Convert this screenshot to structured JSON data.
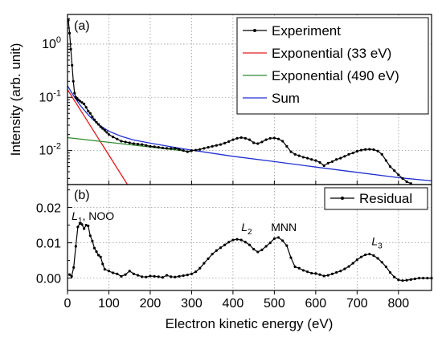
{
  "figure": {
    "xlabel": "Electron kinetic energy (eV)"
  },
  "colors": {
    "experiment": "#000000",
    "exp33": "#e41a1c",
    "exp490": "#2e8b2e",
    "sum": "#1f2fd0",
    "residual": "#000000"
  },
  "chart_data": [
    {
      "id": "a",
      "type": "line",
      "panel_label": "(a)",
      "xlabel": "Electron kinetic energy (eV)",
      "ylabel": "Intensity (arb. unit)",
      "yscale": "log",
      "xlim": [
        0,
        880
      ],
      "ylim": [
        0.0023,
        3.6
      ],
      "x_ticks": [
        0,
        100,
        200,
        300,
        400,
        500,
        600,
        700,
        800
      ],
      "y_tick_labels": [
        "10^0",
        "10^-1",
        "10^-2"
      ],
      "legend": "top-right",
      "grid": true,
      "series": [
        {
          "name": "Experiment",
          "style": "line-marker",
          "x": [
            2,
            5,
            8,
            11,
            14,
            17,
            20,
            23,
            26,
            30,
            35,
            40,
            45,
            50,
            55,
            60,
            65,
            70,
            75,
            80,
            85,
            90,
            95,
            100,
            110,
            120,
            130,
            140,
            150,
            160,
            170,
            180,
            190,
            200,
            210,
            220,
            230,
            240,
            250,
            260,
            270,
            280,
            290,
            300,
            310,
            320,
            330,
            340,
            350,
            360,
            370,
            380,
            390,
            400,
            410,
            420,
            430,
            440,
            450,
            460,
            470,
            480,
            490,
            500,
            510,
            520,
            530,
            540,
            550,
            560,
            570,
            580,
            590,
            600,
            610,
            620,
            630,
            640,
            650,
            660,
            670,
            680,
            690,
            700,
            710,
            720,
            730,
            740,
            750,
            760,
            770,
            780,
            790,
            800,
            810,
            820,
            830
          ],
          "y": [
            2.8,
            1.6,
            0.8,
            0.4,
            0.2,
            0.12,
            0.1,
            0.095,
            0.09,
            0.085,
            0.08,
            0.075,
            0.065,
            0.055,
            0.05,
            0.043,
            0.038,
            0.034,
            0.031,
            0.028,
            0.026,
            0.024,
            0.022,
            0.02,
            0.018,
            0.0165,
            0.015,
            0.0145,
            0.014,
            0.0135,
            0.0132,
            0.013,
            0.0125,
            0.012,
            0.0118,
            0.0115,
            0.0112,
            0.011,
            0.0109,
            0.011,
            0.0105,
            0.01,
            0.0095,
            0.01,
            0.0102,
            0.0105,
            0.011,
            0.0115,
            0.012,
            0.0125,
            0.013,
            0.0138,
            0.0148,
            0.016,
            0.017,
            0.0175,
            0.017,
            0.016,
            0.014,
            0.0135,
            0.0145,
            0.016,
            0.017,
            0.0172,
            0.0165,
            0.015,
            0.012,
            0.0095,
            0.0085,
            0.008,
            0.0075,
            0.0072,
            0.0068,
            0.0065,
            0.006,
            0.0052,
            0.0058,
            0.0062,
            0.0068,
            0.0072,
            0.0078,
            0.0085,
            0.009,
            0.0097,
            0.0102,
            0.0105,
            0.0106,
            0.0104,
            0.0098,
            0.0085,
            0.0065,
            0.005,
            0.0042,
            0.0035,
            0.003,
            0.0026,
            0.0024
          ]
        },
        {
          "name": "Exponential (33 eV)",
          "style": "line",
          "x": [
            0,
            145
          ],
          "y": [
            0.14,
            0.0023
          ]
        },
        {
          "name": "Exponential (490 eV)",
          "style": "line",
          "x": [
            0,
            300
          ],
          "y": [
            0.0175,
            0.0095
          ]
        },
        {
          "name": "Sum",
          "style": "line",
          "x": [
            0,
            10,
            20,
            30,
            40,
            50,
            60,
            80,
            100,
            130,
            160,
            200,
            250,
            300,
            400,
            500,
            600,
            700,
            800,
            880
          ],
          "y": [
            0.165,
            0.122,
            0.093,
            0.072,
            0.058,
            0.047,
            0.039,
            0.029,
            0.023,
            0.0185,
            0.0158,
            0.0138,
            0.0118,
            0.0102,
            0.0078,
            0.0062,
            0.0049,
            0.0039,
            0.0031,
            0.0027
          ]
        }
      ]
    },
    {
      "id": "b",
      "type": "line",
      "panel_label": "(b)",
      "xlabel": "Electron kinetic energy (eV)",
      "yscale": "linear",
      "xlim": [
        0,
        880
      ],
      "ylim": [
        -0.0035,
        0.0265
      ],
      "x_ticks": [
        0,
        100,
        200,
        300,
        400,
        500,
        600,
        700,
        800
      ],
      "x_tick_labels": [
        "0",
        "100",
        "200",
        "300",
        "400",
        "500",
        "600",
        "700",
        "800"
      ],
      "y_ticks": [
        0.0,
        0.01,
        0.02
      ],
      "y_tick_labels": [
        "0.00",
        "0.01",
        "0.02"
      ],
      "legend": "top-right",
      "grid": true,
      "series": [
        {
          "name": "Residual",
          "style": "line-marker",
          "x": [
            5,
            10,
            15,
            20,
            25,
            30,
            35,
            40,
            45,
            50,
            55,
            60,
            65,
            70,
            75,
            80,
            85,
            90,
            100,
            110,
            120,
            130,
            140,
            150,
            160,
            170,
            180,
            190,
            200,
            210,
            220,
            230,
            240,
            250,
            260,
            270,
            280,
            290,
            300,
            310,
            320,
            330,
            340,
            350,
            360,
            370,
            380,
            390,
            400,
            410,
            420,
            430,
            440,
            450,
            460,
            470,
            480,
            490,
            500,
            510,
            520,
            530,
            540,
            550,
            560,
            570,
            580,
            590,
            600,
            610,
            620,
            630,
            640,
            650,
            660,
            670,
            680,
            690,
            700,
            710,
            720,
            730,
            740,
            750,
            760,
            770,
            780,
            790,
            800,
            810,
            820,
            830,
            840,
            850,
            860,
            870,
            880
          ],
          "y": [
            0.001,
            0.0005,
            0.003,
            0.009,
            0.0145,
            0.0155,
            0.0152,
            0.014,
            0.015,
            0.0148,
            0.012,
            0.0105,
            0.0085,
            0.0075,
            0.0065,
            0.006,
            0.004,
            0.0025,
            0.002,
            0.0015,
            0.0012,
            0.0005,
            0.001,
            0.002,
            0.0012,
            0.0008,
            0.0004,
            0.0003,
            0.0006,
            0.0005,
            0.0004,
            0.0002,
            0.0008,
            0.0004,
            0.0003,
            0.0005,
            0.0007,
            0.0009,
            0.0012,
            0.0018,
            0.0028,
            0.0042,
            0.0055,
            0.0068,
            0.0078,
            0.0086,
            0.0094,
            0.0102,
            0.0108,
            0.011,
            0.0108,
            0.0102,
            0.0094,
            0.0082,
            0.0074,
            0.008,
            0.009,
            0.01,
            0.0112,
            0.0115,
            0.0106,
            0.0092,
            0.0058,
            0.0032,
            0.0028,
            0.0022,
            0.0018,
            0.0014,
            0.0013,
            0.001,
            0.0006,
            0.0008,
            0.0012,
            0.0016,
            0.002,
            0.0026,
            0.0033,
            0.0042,
            0.0052,
            0.006,
            0.0066,
            0.0068,
            0.0064,
            0.0056,
            0.0045,
            0.0032,
            0.0016,
            0.0003,
            -0.0005,
            -0.0007,
            -0.0006,
            -0.0004,
            -0.0002,
            0.0,
            0.0,
            0.0,
            0.0
          ]
        }
      ],
      "annotations": [
        {
          "text": "L",
          "sub": "1",
          "suffix": ", NOO",
          "x": 10,
          "y": 0.0165
        },
        {
          "text": "L",
          "sub": "2",
          "suffix": "",
          "x": 420,
          "y": 0.0133
        },
        {
          "text": "MNN",
          "sub": "",
          "suffix": "",
          "x": 492,
          "y": 0.0133
        },
        {
          "text": "L",
          "sub": "3",
          "suffix": "",
          "x": 735,
          "y": 0.0093
        }
      ]
    }
  ]
}
